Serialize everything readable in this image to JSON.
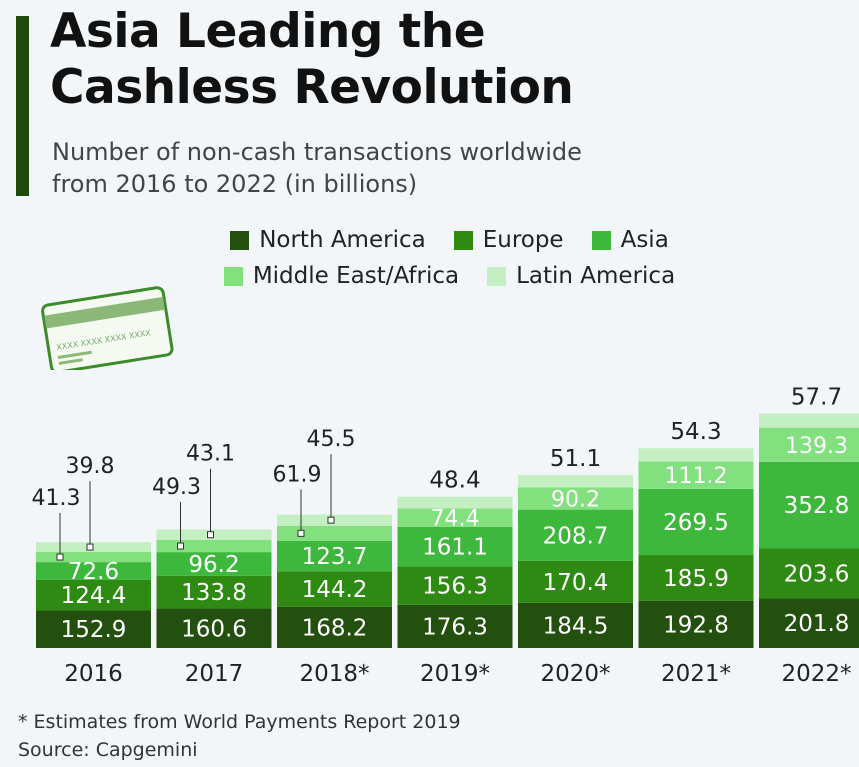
{
  "header": {
    "title_line1": "Asia Leading the",
    "title_line2": "Cashless Revolution",
    "subtitle_line1": "Number of non-cash transactions worldwide",
    "subtitle_line2": "from 2016 to 2022 (in billions)"
  },
  "card_icon": {
    "name": "credit-card-icon",
    "number_text": "XXXX XXXX XXXX XXXX"
  },
  "footer": {
    "note": "* Estimates from World Payments Report 2019",
    "source": "Source: Capgemini"
  },
  "colors": {
    "background": "#f2f6f9",
    "accent": "#1f4a0e"
  },
  "chart_data": {
    "type": "bar",
    "stacked": true,
    "categories": [
      "2016",
      "2017",
      "2018*",
      "2019*",
      "2020*",
      "2021*",
      "2022*"
    ],
    "series": [
      {
        "name": "North America",
        "color": "#24500f",
        "values": [
          152.9,
          160.6,
          168.2,
          176.3,
          184.5,
          192.8,
          201.8
        ]
      },
      {
        "name": "Europe",
        "color": "#2f8a14",
        "values": [
          124.4,
          133.8,
          144.2,
          156.3,
          170.4,
          185.9,
          203.6
        ]
      },
      {
        "name": "Asia",
        "color": "#3db83c",
        "values": [
          72.6,
          96.2,
          123.7,
          161.1,
          208.7,
          269.5,
          352.8
        ]
      },
      {
        "name": "Middle East/Africa",
        "color": "#83e07e",
        "values": [
          41.3,
          49.3,
          61.9,
          74.4,
          90.2,
          111.2,
          139.3
        ]
      },
      {
        "name": "Latin America",
        "color": "#c3efc2",
        "values": [
          39.8,
          43.1,
          45.5,
          48.4,
          51.1,
          54.3,
          57.7
        ]
      }
    ],
    "legend_position": "top-center",
    "grid": false
  }
}
